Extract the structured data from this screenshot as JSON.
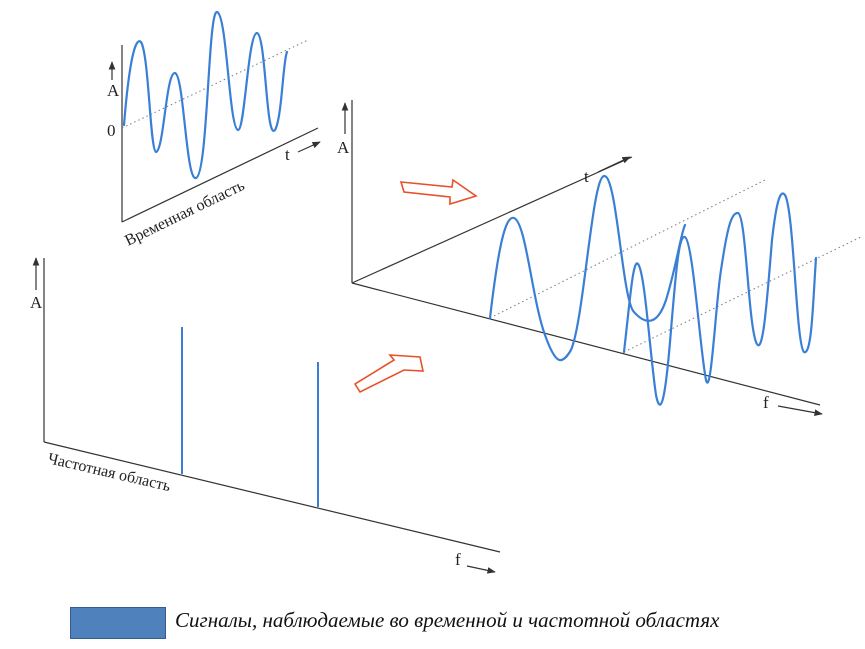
{
  "time_domain": {
    "amplitude_label": "A",
    "zero_label": "0",
    "time_axis_label": "t",
    "region_label": "Временная область"
  },
  "frequency_domain": {
    "amplitude_label": "A",
    "frequency_axis_label": "f",
    "region_label": "Частотная область"
  },
  "combined_3d": {
    "amplitude_label": "A",
    "time_axis_label": "t",
    "frequency_axis_label": "f"
  },
  "caption": {
    "text": "Сигналы, наблюдаемые во временной и частотной областях",
    "swatch_color": "#4f81bd"
  },
  "colors": {
    "signal": "#3a7fd5",
    "arrow_outline": "#e8502a",
    "axis": "#333333"
  }
}
